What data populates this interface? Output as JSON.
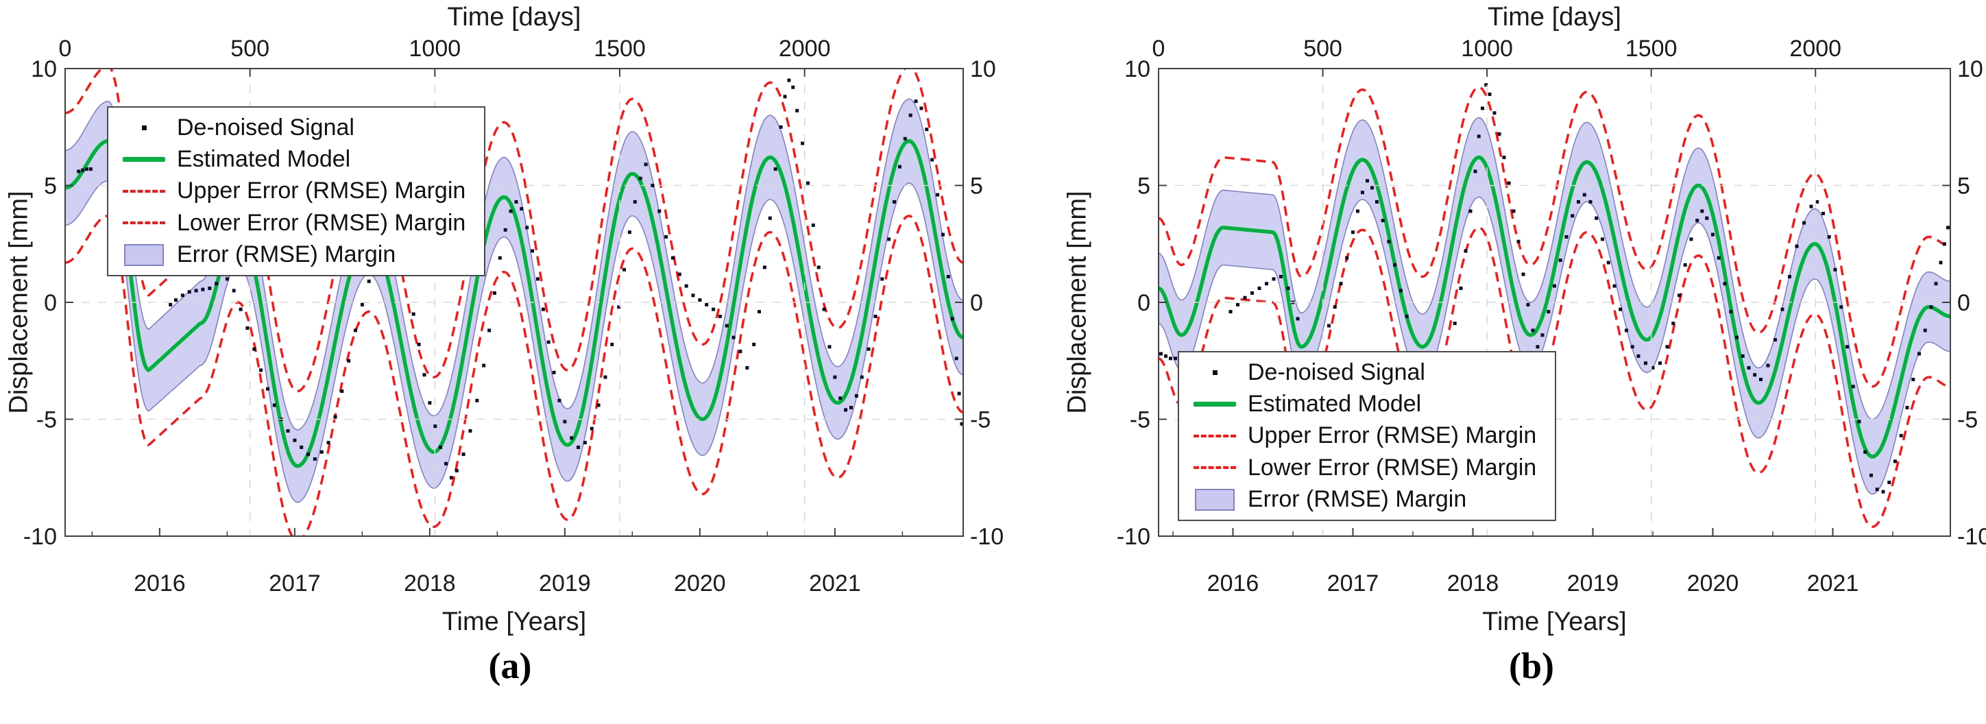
{
  "captions": {
    "a": "(a)",
    "b": "(b)"
  },
  "colors": {
    "model_green": "#00b33c",
    "margin_red": "#ff1414",
    "band_fill": "#c8c8f0",
    "band_edge": "#8282c8",
    "dots": "#0c0c24",
    "grid": "#d8d8d8",
    "axis": "#404040",
    "text": "#1a1a1a"
  },
  "chart_data": [
    {
      "id": "a",
      "type": "line",
      "top_axis_label": "Time [days]",
      "bottom_axis_label": "Time [Years]",
      "y_axis_label": "Displacement [mm]",
      "x_range_years": [
        2015.3,
        2021.95
      ],
      "ylim": [
        -10,
        10
      ],
      "yticks": [
        -10,
        -5,
        0,
        5,
        10
      ],
      "xticks_years": [
        2016,
        2017,
        2018,
        2019,
        2020,
        2021
      ],
      "xticks_days": [
        0,
        500,
        1000,
        1500,
        2000
      ],
      "day_zero_year": 2015.3,
      "grid": true,
      "legend": {
        "position": "top-left",
        "items": [
          {
            "marker": "dot",
            "label": "De-noised Signal"
          },
          {
            "marker": "green-line",
            "label": "Estimated Model"
          },
          {
            "marker": "red-dash",
            "label": "Upper Error (RMSE) Margin"
          },
          {
            "marker": "red-dash",
            "label": "Lower Error (RMSE) Margin"
          },
          {
            "marker": "band-patch",
            "label": "Error (RMSE) Margin"
          }
        ]
      },
      "rmse_margin_offset": 3.2,
      "model_keypoints": [
        [
          2015.3,
          4.9,
          1.6,
          0
        ],
        [
          2015.62,
          6.9,
          1.7,
          0
        ],
        [
          2015.92,
          -2.9,
          1.75,
          1
        ],
        [
          2016.3,
          -0.9,
          1.8,
          0
        ],
        [
          2016.58,
          3.2,
          1.6,
          0
        ],
        [
          2017.02,
          -7.0,
          1.55,
          0
        ],
        [
          2017.55,
          2.8,
          1.6,
          0
        ],
        [
          2018.03,
          -6.4,
          1.55,
          0
        ],
        [
          2018.55,
          4.5,
          1.7,
          0
        ],
        [
          2019.02,
          -6.1,
          1.55,
          0
        ],
        [
          2019.5,
          5.5,
          1.8,
          0
        ],
        [
          2020.02,
          -5.0,
          1.55,
          0
        ],
        [
          2020.52,
          6.2,
          1.8,
          0
        ],
        [
          2021.02,
          -4.3,
          1.55,
          0
        ],
        [
          2021.55,
          6.9,
          1.8,
          0
        ],
        [
          2021.95,
          -1.5,
          1.6,
          0
        ]
      ],
      "denoised_signal": [
        [
          2015.4,
          5.6
        ],
        [
          2015.43,
          5.65
        ],
        [
          2015.46,
          5.7
        ],
        [
          2015.49,
          5.7
        ],
        [
          2016.08,
          -0.1
        ],
        [
          2016.12,
          0.1
        ],
        [
          2016.17,
          0.3
        ],
        [
          2016.22,
          0.45
        ],
        [
          2016.27,
          0.5
        ],
        [
          2016.32,
          0.55
        ],
        [
          2016.37,
          0.6
        ],
        [
          2016.42,
          0.8
        ],
        [
          2016.5,
          1.0
        ],
        [
          2016.55,
          0.5
        ],
        [
          2016.6,
          -0.3
        ],
        [
          2016.65,
          -1.1
        ],
        [
          2016.7,
          -2.0
        ],
        [
          2016.75,
          -2.9
        ],
        [
          2016.8,
          -3.7
        ],
        [
          2016.85,
          -4.4
        ],
        [
          2016.9,
          -5.0
        ],
        [
          2016.95,
          -5.5
        ],
        [
          2017.0,
          -5.9
        ],
        [
          2017.05,
          -6.2
        ],
        [
          2017.1,
          -6.5
        ],
        [
          2017.15,
          -6.7
        ],
        [
          2017.2,
          -6.4
        ],
        [
          2017.25,
          -6.0
        ],
        [
          2017.3,
          -4.9
        ],
        [
          2017.35,
          -3.8
        ],
        [
          2017.4,
          -2.5
        ],
        [
          2017.45,
          -1.2
        ],
        [
          2017.5,
          -0.1
        ],
        [
          2017.55,
          0.9
        ],
        [
          2017.88,
          -0.5
        ],
        [
          2017.92,
          -1.8
        ],
        [
          2017.96,
          -3.1
        ],
        [
          2018.0,
          -4.3
        ],
        [
          2018.04,
          -5.3
        ],
        [
          2018.08,
          -6.2
        ],
        [
          2018.12,
          -6.9
        ],
        [
          2018.16,
          -7.5
        ],
        [
          2018.2,
          -7.2
        ],
        [
          2018.25,
          -6.5
        ],
        [
          2018.3,
          -5.5
        ],
        [
          2018.35,
          -4.2
        ],
        [
          2018.4,
          -2.7
        ],
        [
          2018.44,
          -1.2
        ],
        [
          2018.48,
          0.4
        ],
        [
          2018.52,
          1.9
        ],
        [
          2018.56,
          3.1
        ],
        [
          2018.6,
          3.9
        ],
        [
          2018.64,
          4.3
        ],
        [
          2018.68,
          4.0
        ],
        [
          2018.72,
          3.2
        ],
        [
          2018.76,
          2.2
        ],
        [
          2018.8,
          1.0
        ],
        [
          2018.84,
          -0.3
        ],
        [
          2018.88,
          -1.7
        ],
        [
          2018.92,
          -3.0
        ],
        [
          2018.96,
          -4.2
        ],
        [
          2019.0,
          -5.1
        ],
        [
          2019.05,
          -5.8
        ],
        [
          2019.1,
          -6.2
        ],
        [
          2019.15,
          -6.0
        ],
        [
          2019.2,
          -5.4
        ],
        [
          2019.25,
          -4.4
        ],
        [
          2019.3,
          -3.2
        ],
        [
          2019.35,
          -1.8
        ],
        [
          2019.4,
          -0.2
        ],
        [
          2019.44,
          1.4
        ],
        [
          2019.48,
          3.0
        ],
        [
          2019.52,
          4.3
        ],
        [
          2019.56,
          5.3
        ],
        [
          2019.6,
          5.9
        ],
        [
          2019.65,
          5.0
        ],
        [
          2019.7,
          3.9
        ],
        [
          2019.75,
          2.8
        ],
        [
          2019.8,
          1.9
        ],
        [
          2019.85,
          1.2
        ],
        [
          2019.9,
          0.7
        ],
        [
          2019.95,
          0.3
        ],
        [
          2020.0,
          0.1
        ],
        [
          2020.05,
          -0.1
        ],
        [
          2020.1,
          -0.3
        ],
        [
          2020.15,
          -0.6
        ],
        [
          2020.2,
          -1.0
        ],
        [
          2020.25,
          -1.5
        ],
        [
          2020.3,
          -2.1
        ],
        [
          2020.35,
          -2.8
        ],
        [
          2020.4,
          -1.8
        ],
        [
          2020.44,
          -0.4
        ],
        [
          2020.48,
          1.5
        ],
        [
          2020.52,
          3.6
        ],
        [
          2020.56,
          5.7
        ],
        [
          2020.6,
          7.5
        ],
        [
          2020.63,
          8.8
        ],
        [
          2020.66,
          9.5
        ],
        [
          2020.69,
          9.2
        ],
        [
          2020.72,
          8.2
        ],
        [
          2020.76,
          6.8
        ],
        [
          2020.8,
          5.1
        ],
        [
          2020.84,
          3.3
        ],
        [
          2020.88,
          1.5
        ],
        [
          2020.92,
          -0.3
        ],
        [
          2020.96,
          -1.9
        ],
        [
          2021.0,
          -3.2
        ],
        [
          2021.04,
          -4.1
        ],
        [
          2021.08,
          -4.6
        ],
        [
          2021.12,
          -4.5
        ],
        [
          2021.16,
          -4.0
        ],
        [
          2021.2,
          -3.2
        ],
        [
          2021.25,
          -2.0
        ],
        [
          2021.3,
          -0.6
        ],
        [
          2021.35,
          1.0
        ],
        [
          2021.4,
          2.7
        ],
        [
          2021.44,
          4.3
        ],
        [
          2021.48,
          5.8
        ],
        [
          2021.52,
          7.0
        ],
        [
          2021.56,
          8.0
        ],
        [
          2021.6,
          8.6
        ],
        [
          2021.64,
          8.3
        ],
        [
          2021.68,
          7.4
        ],
        [
          2021.72,
          6.1
        ],
        [
          2021.76,
          4.6
        ],
        [
          2021.8,
          2.9
        ],
        [
          2021.84,
          1.1
        ],
        [
          2021.87,
          -0.7
        ],
        [
          2021.9,
          -2.4
        ],
        [
          2021.92,
          -3.9
        ],
        [
          2021.94,
          -5.2
        ],
        [
          2021.96,
          -6.4
        ]
      ]
    },
    {
      "id": "b",
      "type": "line",
      "top_axis_label": "Time [days]",
      "bottom_axis_label": "Time [Years]",
      "y_axis_label": "Displacement [mm]",
      "x_range_years": [
        2015.38,
        2021.98
      ],
      "ylim": [
        -10,
        10
      ],
      "yticks": [
        -10,
        -5,
        0,
        5,
        10
      ],
      "xticks_years": [
        2016,
        2017,
        2018,
        2019,
        2020,
        2021
      ],
      "xticks_days": [
        0,
        500,
        1000,
        1500,
        2000
      ],
      "day_zero_year": 2015.38,
      "grid": true,
      "legend": {
        "position": "bottom-left",
        "items": [
          {
            "marker": "dot",
            "label": "De-noised Signal"
          },
          {
            "marker": "green-line",
            "label": "Estimated Model"
          },
          {
            "marker": "red-dash",
            "label": "Upper Error (RMSE) Margin"
          },
          {
            "marker": "red-dash",
            "label": "Lower Error (RMSE) Margin"
          },
          {
            "marker": "band-patch",
            "label": "Error (RMSE) Margin"
          }
        ]
      },
      "rmse_margin_offset": 3.0,
      "model_keypoints": [
        [
          2015.38,
          0.6,
          1.5,
          0
        ],
        [
          2015.57,
          -1.4,
          1.5,
          0
        ],
        [
          2015.92,
          3.2,
          1.6,
          1
        ],
        [
          2016.33,
          3.0,
          1.6,
          0
        ],
        [
          2016.57,
          -1.9,
          1.45,
          0
        ],
        [
          2017.08,
          6.1,
          1.7,
          0
        ],
        [
          2017.58,
          -1.9,
          1.4,
          0
        ],
        [
          2018.05,
          6.2,
          1.7,
          0
        ],
        [
          2018.48,
          -1.4,
          1.4,
          0
        ],
        [
          2018.95,
          6.0,
          1.7,
          0
        ],
        [
          2019.45,
          -1.6,
          1.4,
          0
        ],
        [
          2019.88,
          5.0,
          1.6,
          0
        ],
        [
          2020.38,
          -4.3,
          1.5,
          0
        ],
        [
          2020.85,
          2.5,
          1.5,
          0
        ],
        [
          2021.33,
          -6.6,
          1.6,
          0
        ],
        [
          2021.8,
          -0.2,
          1.5,
          0
        ],
        [
          2021.98,
          -0.6,
          1.5,
          0
        ]
      ],
      "denoised_signal": [
        [
          2015.4,
          -2.2
        ],
        [
          2015.44,
          -2.3
        ],
        [
          2015.48,
          -2.4
        ],
        [
          2015.52,
          -2.4
        ],
        [
          2015.98,
          -0.4
        ],
        [
          2016.04,
          -0.1
        ],
        [
          2016.1,
          0.2
        ],
        [
          2016.16,
          0.4
        ],
        [
          2016.22,
          0.6
        ],
        [
          2016.28,
          0.8
        ],
        [
          2016.34,
          1.0
        ],
        [
          2016.4,
          1.1
        ],
        [
          2016.46,
          0.6
        ],
        [
          2016.5,
          0.0
        ],
        [
          2016.54,
          -0.7
        ],
        [
          2016.8,
          -1.0
        ],
        [
          2016.85,
          -0.2
        ],
        [
          2016.9,
          0.8
        ],
        [
          2016.95,
          1.9
        ],
        [
          2017.0,
          3.0
        ],
        [
          2017.04,
          3.9
        ],
        [
          2017.08,
          4.7
        ],
        [
          2017.12,
          5.2
        ],
        [
          2017.16,
          4.9
        ],
        [
          2017.2,
          4.3
        ],
        [
          2017.25,
          3.5
        ],
        [
          2017.3,
          2.6
        ],
        [
          2017.35,
          1.6
        ],
        [
          2017.4,
          0.5
        ],
        [
          2017.45,
          -0.6
        ],
        [
          2017.85,
          -0.9
        ],
        [
          2017.9,
          0.6
        ],
        [
          2017.94,
          2.2
        ],
        [
          2017.98,
          3.9
        ],
        [
          2018.02,
          5.6
        ],
        [
          2018.05,
          7.1
        ],
        [
          2018.08,
          8.3
        ],
        [
          2018.11,
          9.3
        ],
        [
          2018.14,
          8.9
        ],
        [
          2018.18,
          8.1
        ],
        [
          2018.22,
          7.2
        ],
        [
          2018.26,
          6.2
        ],
        [
          2018.3,
          5.1
        ],
        [
          2018.34,
          3.9
        ],
        [
          2018.38,
          2.6
        ],
        [
          2018.42,
          1.2
        ],
        [
          2018.46,
          -0.1
        ],
        [
          2018.5,
          -1.2
        ],
        [
          2018.54,
          -1.9
        ],
        [
          2018.58,
          -1.4
        ],
        [
          2018.63,
          -0.4
        ],
        [
          2018.68,
          0.7
        ],
        [
          2018.73,
          1.8
        ],
        [
          2018.78,
          2.8
        ],
        [
          2018.83,
          3.7
        ],
        [
          2018.88,
          4.3
        ],
        [
          2018.93,
          4.6
        ],
        [
          2018.98,
          4.3
        ],
        [
          2019.03,
          3.6
        ],
        [
          2019.08,
          2.7
        ],
        [
          2019.13,
          1.7
        ],
        [
          2019.18,
          0.7
        ],
        [
          2019.23,
          -0.3
        ],
        [
          2019.28,
          -1.2
        ],
        [
          2019.33,
          -1.9
        ],
        [
          2019.38,
          -2.3
        ],
        [
          2019.44,
          -2.6
        ],
        [
          2019.5,
          -2.8
        ],
        [
          2019.56,
          -2.6
        ],
        [
          2019.62,
          -1.9
        ],
        [
          2019.67,
          -0.9
        ],
        [
          2019.72,
          0.3
        ],
        [
          2019.77,
          1.6
        ],
        [
          2019.82,
          2.7
        ],
        [
          2019.87,
          3.5
        ],
        [
          2019.91,
          3.9
        ],
        [
          2019.95,
          3.6
        ],
        [
          2020.0,
          2.9
        ],
        [
          2020.05,
          1.9
        ],
        [
          2020.1,
          0.8
        ],
        [
          2020.15,
          -0.4
        ],
        [
          2020.2,
          -1.5
        ],
        [
          2020.25,
          -2.3
        ],
        [
          2020.3,
          -2.8
        ],
        [
          2020.35,
          -3.1
        ],
        [
          2020.4,
          -3.3
        ],
        [
          2020.46,
          -2.7
        ],
        [
          2020.52,
          -1.6
        ],
        [
          2020.58,
          -0.3
        ],
        [
          2020.64,
          1.1
        ],
        [
          2020.7,
          2.4
        ],
        [
          2020.76,
          3.4
        ],
        [
          2020.82,
          4.1
        ],
        [
          2020.87,
          4.3
        ],
        [
          2020.92,
          3.8
        ],
        [
          2020.97,
          2.8
        ],
        [
          2021.02,
          1.4
        ],
        [
          2021.07,
          -0.2
        ],
        [
          2021.12,
          -1.9
        ],
        [
          2021.17,
          -3.6
        ],
        [
          2021.22,
          -5.1
        ],
        [
          2021.27,
          -6.4
        ],
        [
          2021.32,
          -7.4
        ],
        [
          2021.37,
          -8.0
        ],
        [
          2021.42,
          -8.1
        ],
        [
          2021.47,
          -7.7
        ],
        [
          2021.52,
          -6.8
        ],
        [
          2021.57,
          -5.7
        ],
        [
          2021.62,
          -4.5
        ],
        [
          2021.67,
          -3.3
        ],
        [
          2021.72,
          -2.2
        ],
        [
          2021.77,
          -1.2
        ],
        [
          2021.82,
          -0.2
        ],
        [
          2021.86,
          0.8
        ],
        [
          2021.9,
          1.7
        ],
        [
          2021.93,
          2.5
        ],
        [
          2021.96,
          3.2
        ]
      ]
    }
  ]
}
